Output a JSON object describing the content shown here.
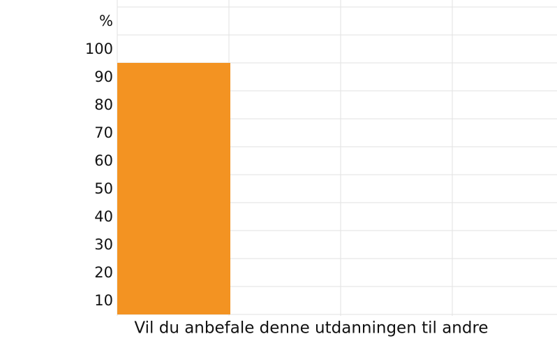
{
  "chart_data": {
    "type": "bar",
    "ylabel": "%",
    "categories": [
      "Vil du anbefale denne utdanningen til andre"
    ],
    "values": [
      95
    ],
    "color": "#f39322",
    "ylim": [
      5,
      105
    ],
    "yticks": [
      10,
      20,
      30,
      40,
      50,
      60,
      70,
      80,
      90,
      100
    ]
  }
}
